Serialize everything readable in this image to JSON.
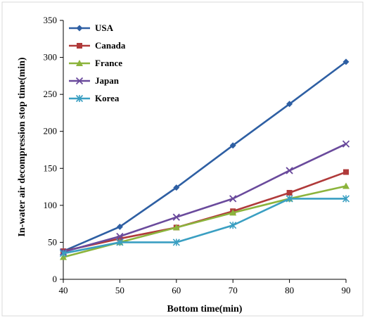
{
  "chart_data": {
    "type": "line",
    "title": "",
    "xlabel": "Bottom time(min)",
    "ylabel": "In-water air decompression stop time(min)",
    "x": [
      40,
      50,
      60,
      70,
      80,
      90
    ],
    "xlim": [
      40,
      90
    ],
    "ylim": [
      0,
      350
    ],
    "xticks": [
      "40",
      "50",
      "60",
      "70",
      "80",
      "90"
    ],
    "yticks": [
      "0",
      "50",
      "100",
      "150",
      "200",
      "250",
      "300",
      "350"
    ],
    "grid": false,
    "legend_position": "top-left",
    "series": [
      {
        "name": "USA",
        "values": [
          38,
          71,
          124,
          181,
          237,
          294
        ],
        "color": "#2E5FA3",
        "marker": "diamond"
      },
      {
        "name": "Canada",
        "values": [
          38,
          55,
          70,
          92,
          117,
          145
        ],
        "color": "#B03A3A",
        "marker": "square"
      },
      {
        "name": "France",
        "values": [
          30,
          50,
          70,
          90,
          109,
          126
        ],
        "color": "#8CB43C",
        "marker": "triangle"
      },
      {
        "name": "Japan",
        "values": [
          37,
          58,
          84,
          109,
          147,
          183
        ],
        "color": "#6A4A9C",
        "marker": "x"
      },
      {
        "name": "Korea",
        "values": [
          35,
          50,
          50,
          73,
          109,
          109
        ],
        "color": "#3A9FC2",
        "marker": "star"
      }
    ]
  }
}
